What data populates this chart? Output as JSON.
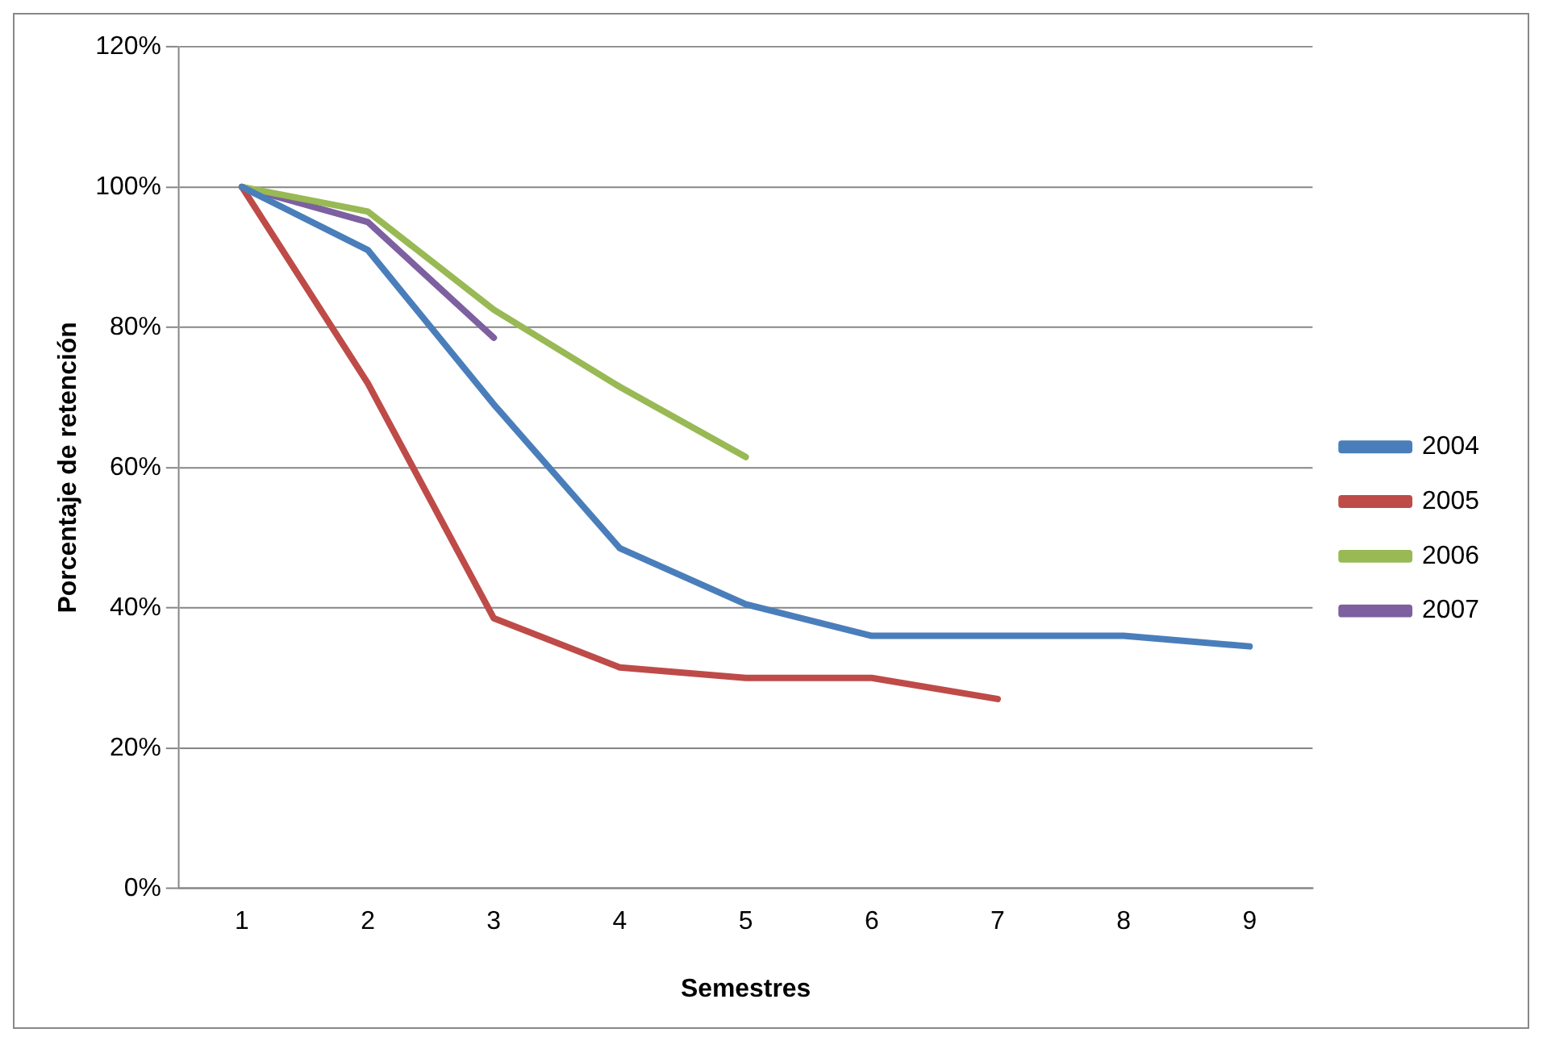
{
  "chart_data": {
    "type": "line",
    "xlabel": "Semestres",
    "ylabel": "Porcentaje de retención",
    "categories": [
      "1",
      "2",
      "3",
      "4",
      "5",
      "6",
      "7",
      "8",
      "9"
    ],
    "series": [
      {
        "name": "2004",
        "color": "#4a7ebb",
        "values": [
          100,
          91,
          69,
          48.5,
          40.5,
          36,
          36,
          36,
          34.5
        ]
      },
      {
        "name": "2005",
        "color": "#be4b48",
        "values": [
          100,
          72,
          38.5,
          31.5,
          30,
          30,
          27,
          null,
          null
        ]
      },
      {
        "name": "2006",
        "color": "#98b954",
        "values": [
          100,
          96.5,
          82.5,
          71.5,
          61.5,
          null,
          null,
          null,
          null
        ]
      },
      {
        "name": "2007",
        "color": "#7d60a0",
        "values": [
          100,
          95,
          78.5,
          null,
          null,
          null,
          null,
          null,
          null
        ]
      }
    ],
    "ylim": [
      0,
      120
    ],
    "yticks": [
      {
        "value": 0,
        "label": "0%"
      },
      {
        "value": 20,
        "label": "20%"
      },
      {
        "value": 40,
        "label": "40%"
      },
      {
        "value": 60,
        "label": "60%"
      },
      {
        "value": 80,
        "label": "80%"
      },
      {
        "value": 100,
        "label": "100%"
      },
      {
        "value": 120,
        "label": "120%"
      }
    ],
    "grid": "y",
    "legend": "right",
    "marker": "none",
    "line_style": "solid"
  }
}
